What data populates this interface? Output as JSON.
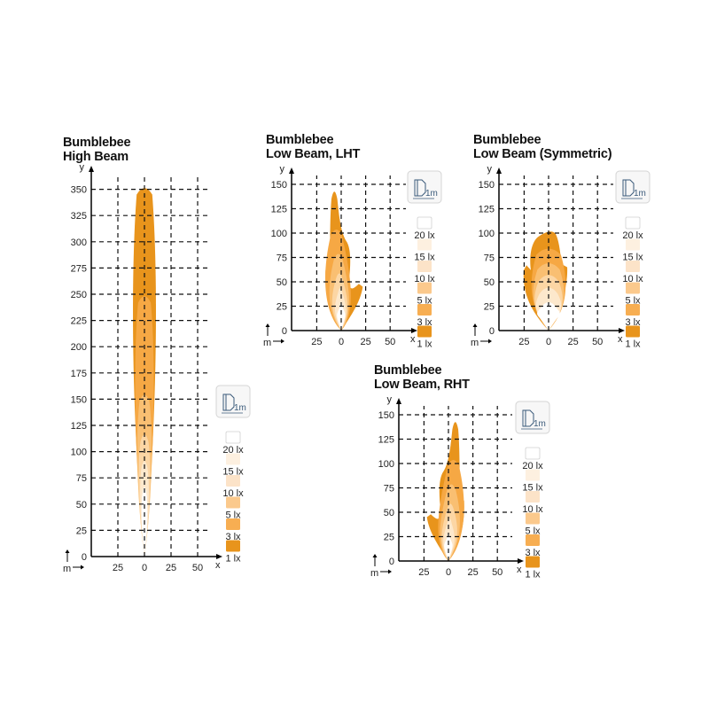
{
  "chart_data": [
    {
      "id": "high-beam",
      "type": "isolux-diagram",
      "title_line1": "Bumblebee",
      "title_line2": "High Beam",
      "xlabel": "x",
      "ylabel": "y",
      "unit_label": "m",
      "x_ticks": [
        "25",
        "0",
        "25",
        "50"
      ],
      "x_tick_values": [
        -25,
        0,
        25,
        50
      ],
      "y_ticks": [
        0,
        25,
        50,
        75,
        100,
        125,
        150,
        175,
        200,
        225,
        250,
        275,
        300,
        325,
        350
      ],
      "ylim": [
        0,
        360
      ],
      "xlim": [
        -50,
        65
      ],
      "grid": true,
      "contours": [
        {
          "level": "1 lx",
          "reach_m": 355,
          "half_width_m": 5,
          "skew_m": 0
        },
        {
          "level": "3 lx",
          "reach_m": 252,
          "half_width_m": 4,
          "skew_m": 0
        },
        {
          "level": "5 lx",
          "reach_m": 158,
          "half_width_m": 3.2,
          "skew_m": 0
        },
        {
          "level": "10 lx",
          "reach_m": 120,
          "half_width_m": 2.5,
          "skew_m": 0
        },
        {
          "level": "15 lx",
          "reach_m": 95,
          "half_width_m": 1.8,
          "skew_m": 0
        },
        {
          "level": "20 lx",
          "reach_m": 70,
          "half_width_m": 1.2,
          "skew_m": 0
        }
      ]
    },
    {
      "id": "low-beam-lht",
      "type": "isolux-diagram",
      "title_line1": "Bumblebee",
      "title_line2": "Low Beam, LHT",
      "xlabel": "x",
      "ylabel": "y",
      "unit_label": "m",
      "x_ticks": [
        "25",
        "0",
        "25",
        "50"
      ],
      "x_tick_values": [
        -25,
        0,
        25,
        50
      ],
      "y_ticks": [
        0,
        25,
        50,
        75,
        100,
        125,
        150
      ],
      "ylim": [
        0,
        160
      ],
      "xlim": [
        -50,
        65
      ],
      "grid": true,
      "contours": [
        {
          "level": "1 lx",
          "reach_m": 147,
          "peak_x_m": -8
        },
        {
          "level": "3 lx",
          "reach_m": 105,
          "peak_x_m": -5
        },
        {
          "level": "5 lx",
          "reach_m": 80,
          "peak_x_m": -3
        },
        {
          "level": "10 lx",
          "reach_m": 60,
          "peak_x_m": -2
        },
        {
          "level": "15 lx",
          "reach_m": 45,
          "peak_x_m": -1
        },
        {
          "level": "20 lx",
          "reach_m": 30,
          "peak_x_m": 0
        }
      ]
    },
    {
      "id": "low-beam-symmetric",
      "type": "isolux-diagram",
      "title_line1": "Bumblebee",
      "title_line2": "Low Beam (Symmetric)",
      "xlabel": "x",
      "ylabel": "y",
      "unit_label": "m",
      "x_ticks": [
        "25",
        "0",
        "25",
        "50"
      ],
      "x_tick_values": [
        -25,
        0,
        25,
        50
      ],
      "y_ticks": [
        0,
        25,
        50,
        75,
        100,
        125,
        150
      ],
      "ylim": [
        0,
        160
      ],
      "xlim": [
        -50,
        65
      ],
      "grid": true,
      "contours": [
        {
          "level": "1 lx",
          "reach_m": 102,
          "peak_x_m": 0
        },
        {
          "level": "3 lx",
          "reach_m": 85,
          "peak_x_m": 0
        },
        {
          "level": "5 lx",
          "reach_m": 70,
          "peak_x_m": 0
        },
        {
          "level": "10 lx",
          "reach_m": 58,
          "peak_x_m": 0
        },
        {
          "level": "15 lx",
          "reach_m": 45,
          "peak_x_m": 0
        },
        {
          "level": "20 lx",
          "reach_m": 30,
          "peak_x_m": 0
        }
      ]
    },
    {
      "id": "low-beam-rht",
      "type": "isolux-diagram",
      "title_line1": "Bumblebee",
      "title_line2": "Low Beam, RHT",
      "xlabel": "x",
      "ylabel": "y",
      "unit_label": "m",
      "x_ticks": [
        "25",
        "0",
        "25",
        "50"
      ],
      "x_tick_values": [
        -25,
        0,
        25,
        50
      ],
      "y_ticks": [
        0,
        25,
        50,
        75,
        100,
        125,
        150
      ],
      "ylim": [
        0,
        160
      ],
      "xlim": [
        -50,
        65
      ],
      "grid": true,
      "contours": [
        {
          "level": "1 lx",
          "reach_m": 147,
          "peak_x_m": 8
        },
        {
          "level": "3 lx",
          "reach_m": 105,
          "peak_x_m": 5
        },
        {
          "level": "5 lx",
          "reach_m": 80,
          "peak_x_m": 3
        },
        {
          "level": "10 lx",
          "reach_m": 60,
          "peak_x_m": 2
        },
        {
          "level": "15 lx",
          "reach_m": 45,
          "peak_x_m": 1
        },
        {
          "level": "20 lx",
          "reach_m": 30,
          "peak_x_m": 0
        }
      ]
    }
  ],
  "legend": {
    "icon": "headlight-1m-icon",
    "icon_label": "1m",
    "items": [
      {
        "label": "20 lx",
        "color": "#ffffff"
      },
      {
        "label": "15 lx",
        "color": "#fdf0e0"
      },
      {
        "label": "10 lx",
        "color": "#fce3c8"
      },
      {
        "label": "5 lx",
        "color": "#fbc98c"
      },
      {
        "label": "3 lx",
        "color": "#f7ae52"
      },
      {
        "label": "1 lx",
        "color": "#e8941c"
      }
    ]
  },
  "colors": {
    "c1": "#e8941c",
    "c3": "#f6a844",
    "c5": "#f9bf72",
    "c10": "#fcd6a4",
    "c15": "#fde8cc",
    "c20": "#ffffff",
    "grid": "#111111"
  }
}
